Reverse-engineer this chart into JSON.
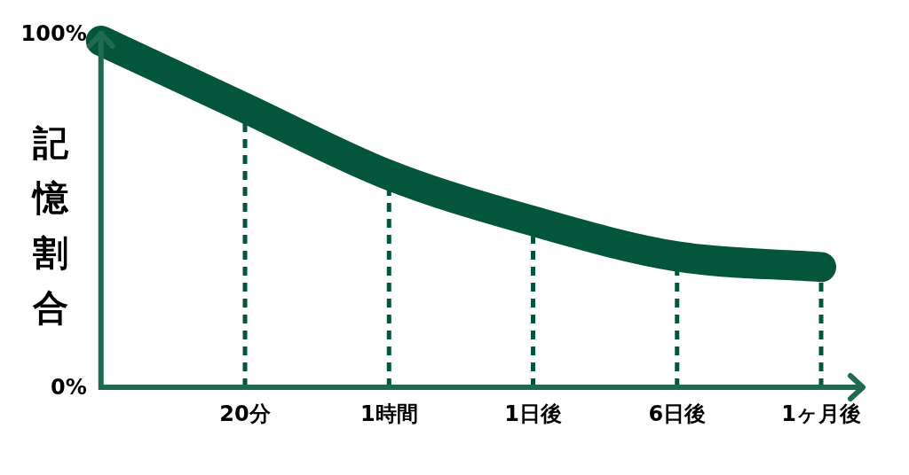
{
  "chart_data": {
    "type": "line",
    "ylabel": "記憶割合",
    "categories": [
      null,
      "20分",
      "1時間",
      "1日後",
      "6日後",
      "1ヶ月後"
    ],
    "series": [
      {
        "color": "#03563c",
        "values": [
          98,
          79,
          60,
          47,
          37,
          34
        ]
      }
    ],
    "ylim": [
      0,
      100
    ],
    "yticks": [
      {
        "value": 0,
        "label": "0%"
      },
      {
        "value": 100,
        "label": "100%"
      }
    ],
    "ref_lines": [
      {
        "axis": "x",
        "value": "20分",
        "color": "#03563c",
        "line_style": "dashed"
      },
      {
        "axis": "x",
        "value": "1時間",
        "color": "#03563c",
        "line_style": "dashed"
      },
      {
        "axis": "x",
        "value": "1日後",
        "color": "#03563c",
        "line_style": "dashed"
      },
      {
        "axis": "x",
        "value": "6日後",
        "color": "#03563c",
        "line_style": "dashed"
      },
      {
        "axis": "x",
        "value": "1ヶ月後",
        "color": "#03563c",
        "line_style": "dashed"
      }
    ],
    "grid": false,
    "line_style": "solid"
  }
}
